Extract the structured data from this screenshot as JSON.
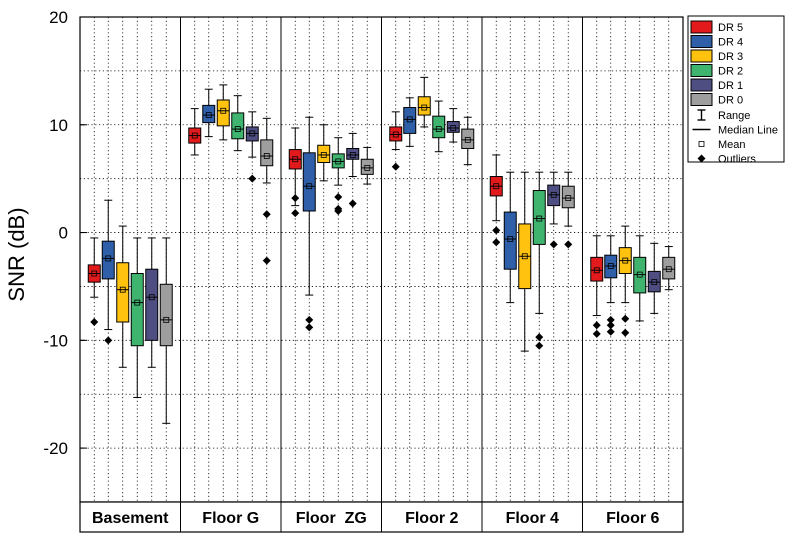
{
  "chart_data": {
    "type": "box",
    "ylabel": "SNR (dB)",
    "xlabel": "",
    "ylim": [
      -25,
      20
    ],
    "y_ticks": [
      -20,
      -10,
      0,
      10,
      20
    ],
    "grid": "dotted",
    "legend_position": "top-right",
    "categories": [
      "Basement",
      "Floor G",
      "Floor  ZG",
      "Floor 2",
      "Floor 4",
      "Floor 6"
    ],
    "series": [
      {
        "name": "DR 5",
        "color": "#e31a1c",
        "boxes": [
          {
            "min": -6,
            "q1": -4.6,
            "median": -3.8,
            "q3": -3,
            "max": -0.5,
            "mean": -3.8,
            "outliers": [
              -8.3
            ]
          },
          {
            "min": 7.2,
            "q1": 8.3,
            "median": 9,
            "q3": 9.7,
            "max": 11.5,
            "mean": 9,
            "outliers": []
          },
          {
            "min": 2.5,
            "q1": 5.9,
            "median": 6.8,
            "q3": 7.7,
            "max": 9.7,
            "mean": 6.8,
            "outliers": [
              3.2,
              1.8
            ]
          },
          {
            "min": 7.7,
            "q1": 8.5,
            "median": 9.1,
            "q3": 9.8,
            "max": 11.2,
            "mean": 9.1,
            "outliers": [
              6.1
            ]
          },
          {
            "min": 1.1,
            "q1": 3.4,
            "median": 4.3,
            "q3": 5.2,
            "max": 7.2,
            "mean": 4.3,
            "outliers": [
              0.2,
              -0.9
            ]
          },
          {
            "min": -7.7,
            "q1": -4.5,
            "median": -3.5,
            "q3": -2.3,
            "max": -0.3,
            "mean": -3.5,
            "outliers": [
              -8.6,
              -9.4
            ]
          }
        ]
      },
      {
        "name": "DR 4",
        "color": "#2e5fa8",
        "boxes": [
          {
            "min": -9,
            "q1": -4.3,
            "median": -2.4,
            "q3": -0.8,
            "max": 3,
            "mean": -2.4,
            "outliers": [
              -10
            ]
          },
          {
            "min": 8.9,
            "q1": 10.2,
            "median": 10.9,
            "q3": 11.8,
            "max": 13.3,
            "mean": 10.9,
            "outliers": []
          },
          {
            "min": -5.8,
            "q1": 2,
            "median": 4.3,
            "q3": 7.4,
            "max": 10.7,
            "mean": 4.3,
            "outliers": [
              -8.1,
              -8.8
            ]
          },
          {
            "min": 8,
            "q1": 9.2,
            "median": 10.5,
            "q3": 11.6,
            "max": 12.5,
            "mean": 10.5,
            "outliers": []
          },
          {
            "min": -6.5,
            "q1": -3.4,
            "median": -0.6,
            "q3": 1.9,
            "max": 5.6,
            "mean": -0.6,
            "outliers": []
          },
          {
            "min": -6.5,
            "q1": -4.2,
            "median": -3.1,
            "q3": -2.1,
            "max": -0.3,
            "mean": -3.1,
            "outliers": [
              -8.1,
              -8.6,
              -9.2
            ]
          }
        ]
      },
      {
        "name": "DR 3",
        "color": "#ffc20e",
        "boxes": [
          {
            "min": -12.5,
            "q1": -8.3,
            "median": -5.3,
            "q3": -2.8,
            "max": 0.6,
            "mean": -5.3,
            "outliers": []
          },
          {
            "min": 8.6,
            "q1": 9.9,
            "median": 11.3,
            "q3": 12.3,
            "max": 13.7,
            "mean": 11.3,
            "outliers": []
          },
          {
            "min": 4.8,
            "q1": 6.5,
            "median": 7.2,
            "q3": 8.1,
            "max": 10,
            "mean": 7.2,
            "outliers": []
          },
          {
            "min": 9.8,
            "q1": 10.9,
            "median": 11.6,
            "q3": 12.6,
            "max": 14.4,
            "mean": 11.6,
            "outliers": []
          },
          {
            "min": -11,
            "q1": -5.2,
            "median": -2.2,
            "q3": 0.8,
            "max": 5.6,
            "mean": -2.2,
            "outliers": []
          },
          {
            "min": -6.5,
            "q1": -3.8,
            "median": -2.6,
            "q3": -1.4,
            "max": 0.6,
            "mean": -2.6,
            "outliers": [
              -8,
              -9.3
            ]
          }
        ]
      },
      {
        "name": "DR 2",
        "color": "#3fb46e",
        "boxes": [
          {
            "min": -15.3,
            "q1": -10.5,
            "median": -6.5,
            "q3": -3.8,
            "max": -0.5,
            "mean": -6.5,
            "outliers": []
          },
          {
            "min": 7.6,
            "q1": 8.7,
            "median": 9.6,
            "q3": 11.1,
            "max": 12.7,
            "mean": 9.6,
            "outliers": []
          },
          {
            "min": 4.4,
            "q1": 6,
            "median": 6.6,
            "q3": 7.3,
            "max": 8.8,
            "mean": 6.6,
            "outliers": [
              3.3,
              2.2,
              2
            ]
          },
          {
            "min": 7.5,
            "q1": 8.8,
            "median": 9.6,
            "q3": 10.8,
            "max": 12.2,
            "mean": 9.6,
            "outliers": []
          },
          {
            "min": -7.5,
            "q1": -1.1,
            "median": 1.3,
            "q3": 3.9,
            "max": 5.6,
            "mean": 1.3,
            "outliers": [
              -9.7,
              -10.5
            ]
          },
          {
            "min": -8.2,
            "q1": -5.6,
            "median": -3.9,
            "q3": -2.3,
            "max": -0.3,
            "mean": -3.9,
            "outliers": []
          }
        ]
      },
      {
        "name": "DR 1",
        "color": "#4e4e82",
        "boxes": [
          {
            "min": -12.5,
            "q1": -10,
            "median": -6,
            "q3": -3.4,
            "max": -0.5,
            "mean": -6,
            "outliers": []
          },
          {
            "min": 7,
            "q1": 8.5,
            "median": 9.2,
            "q3": 9.8,
            "max": 11.2,
            "mean": 9.2,
            "outliers": [
              5
            ]
          },
          {
            "min": 5.2,
            "q1": 6.8,
            "median": 7.2,
            "q3": 7.8,
            "max": 9.2,
            "mean": 7.2,
            "outliers": [
              2.7
            ]
          },
          {
            "min": 8.4,
            "q1": 9.3,
            "median": 9.7,
            "q3": 10.3,
            "max": 11.5,
            "mean": 9.7,
            "outliers": []
          },
          {
            "min": 0.8,
            "q1": 2.5,
            "median": 3.5,
            "q3": 4.4,
            "max": 5.6,
            "mean": 3.5,
            "outliers": [
              -1.1
            ]
          },
          {
            "min": -7.5,
            "q1": -5.5,
            "median": -4.6,
            "q3": -3.6,
            "max": -1,
            "mean": -4.6,
            "outliers": []
          }
        ]
      },
      {
        "name": "DR 0",
        "color": "#9e9e9e",
        "boxes": [
          {
            "min": -17.7,
            "q1": -10.5,
            "median": -8.1,
            "q3": -4.8,
            "max": -0.5,
            "mean": -8.1,
            "outliers": []
          },
          {
            "min": 4.6,
            "q1": 6.2,
            "median": 7.1,
            "q3": 8.6,
            "max": 10.6,
            "mean": 7.1,
            "outliers": [
              1.7,
              -2.6
            ]
          },
          {
            "min": 4.5,
            "q1": 5.4,
            "median": 6,
            "q3": 6.8,
            "max": 7.9,
            "mean": 6,
            "outliers": []
          },
          {
            "min": 6.3,
            "q1": 7.8,
            "median": 8.6,
            "q3": 9.6,
            "max": 10.7,
            "mean": 8.6,
            "outliers": []
          },
          {
            "min": 0.6,
            "q1": 2.3,
            "median": 3.2,
            "q3": 4.3,
            "max": 5.6,
            "mean": 3.2,
            "outliers": [
              -1.1
            ]
          },
          {
            "min": -5.3,
            "q1": -4.3,
            "median": -3.4,
            "q3": -2.3,
            "max": -1.3,
            "mean": -3.4,
            "outliers": []
          }
        ]
      }
    ],
    "legend_extra": [
      "Range",
      "Median Line",
      "Mean",
      "Outliers"
    ]
  }
}
